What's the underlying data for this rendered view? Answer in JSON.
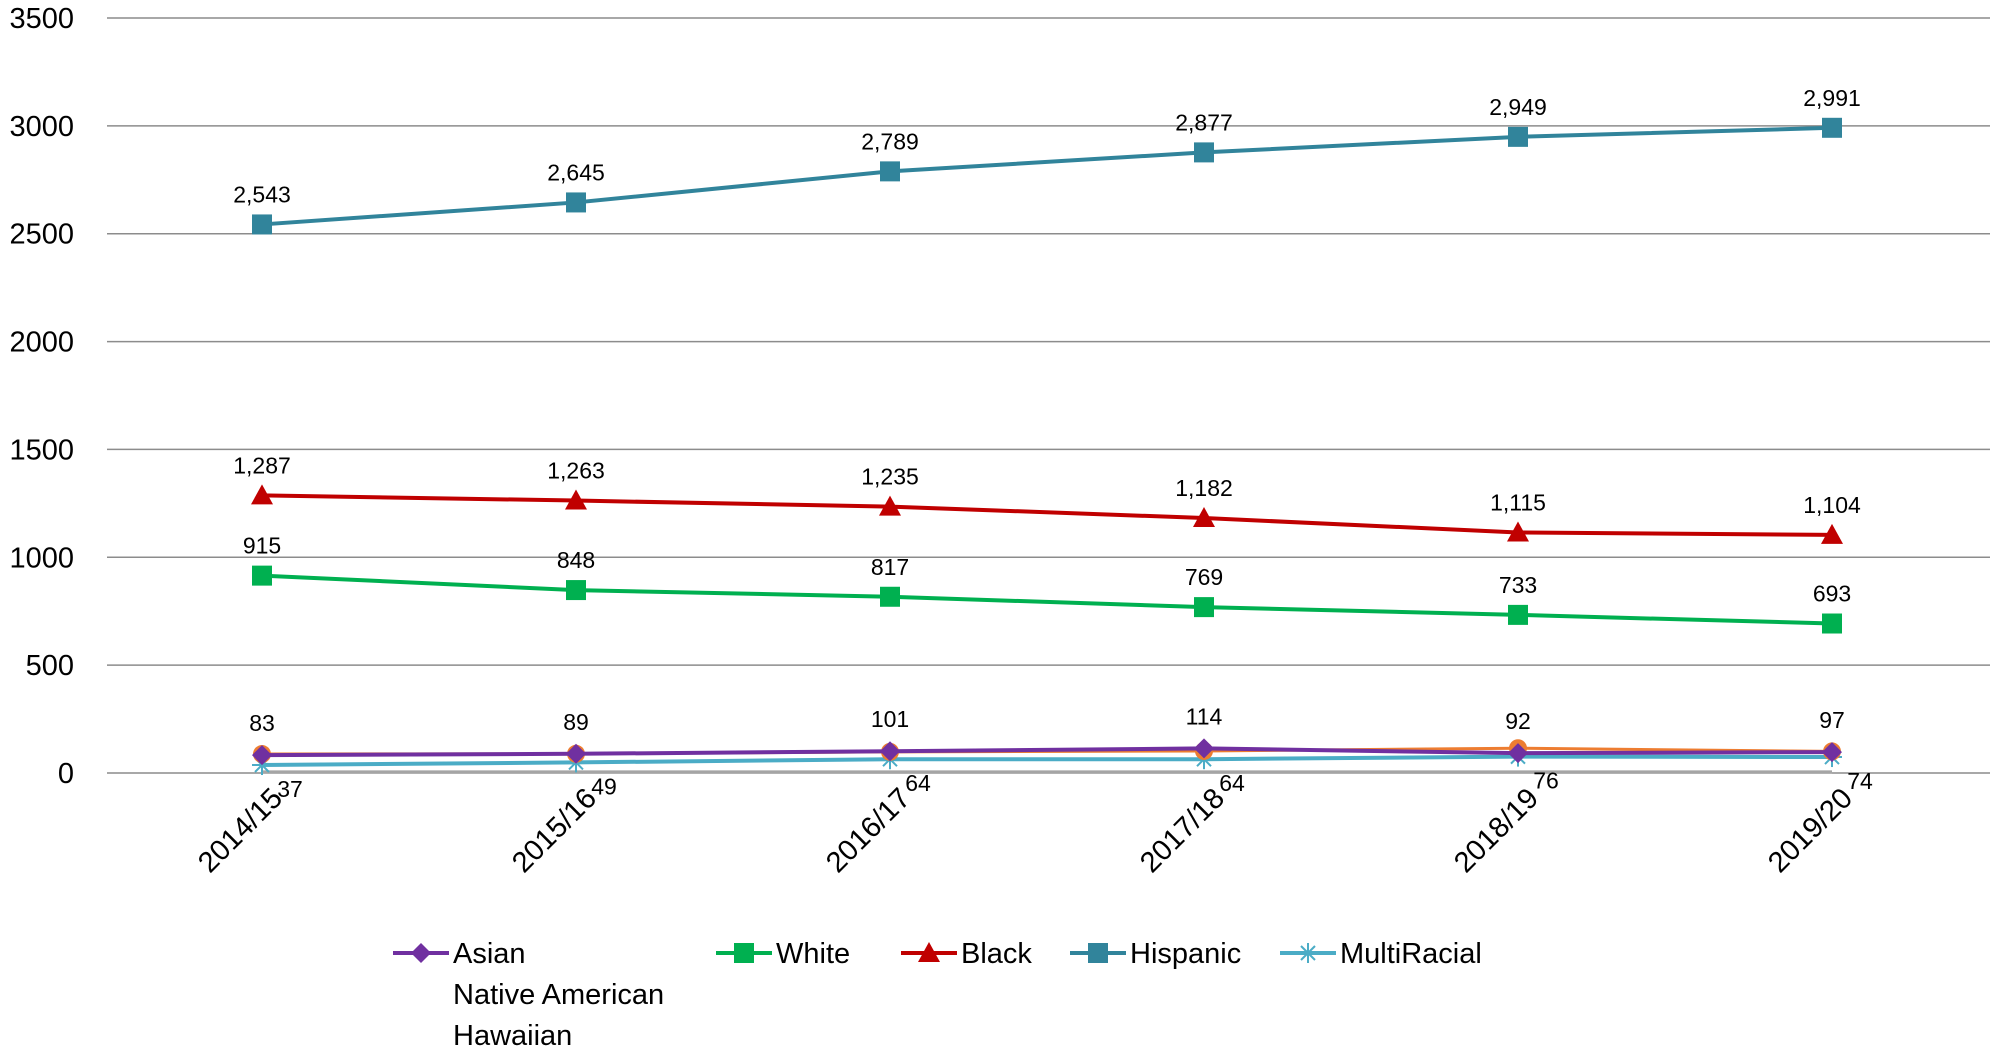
{
  "chart_data": {
    "type": "line",
    "categories": [
      "2014/15",
      "2015/16",
      "2016/17",
      "2017/18",
      "2018/19",
      "2019/20"
    ],
    "y_ticks": [
      "0",
      "500",
      "1000",
      "1500",
      "2000",
      "2500",
      "3000",
      "3500"
    ],
    "ylim": [
      0,
      3500
    ],
    "grid": "horizontal",
    "legend_position": "bottom",
    "series": [
      {
        "name": "Asian",
        "values": [
          83,
          89,
          101,
          114,
          92,
          97
        ],
        "labels": [
          "83",
          "89",
          "101",
          "114",
          "92",
          "97"
        ],
        "color": "#7030a0",
        "marker": "diamond"
      },
      {
        "name": "Native American",
        "values": [
          88,
          89,
          98,
          102,
          115,
          100
        ],
        "color": "#ed7d31",
        "marker": "circle"
      },
      {
        "name": "Hawaiian",
        "values": [
          5,
          5,
          5,
          5,
          5,
          5
        ],
        "color": "#a5a5a5",
        "marker": "none"
      },
      {
        "name": "White",
        "values": [
          915,
          848,
          817,
          769,
          733,
          693
        ],
        "labels": [
          "915",
          "848",
          "817",
          "769",
          "733",
          "693"
        ],
        "color": "#00b050",
        "marker": "square"
      },
      {
        "name": "Black",
        "values": [
          1287,
          1263,
          1235,
          1182,
          1115,
          1104
        ],
        "labels": [
          "1,287",
          "1,263",
          "1,235",
          "1,182",
          "1,115",
          "1,104"
        ],
        "color": "#c00000",
        "marker": "triangle"
      },
      {
        "name": "Hispanic",
        "values": [
          2543,
          2645,
          2789,
          2877,
          2949,
          2991
        ],
        "labels": [
          "2,543",
          "2,645",
          "2,789",
          "2,877",
          "2,949",
          "2,991"
        ],
        "color": "#31849b",
        "marker": "square"
      },
      {
        "name": "MultiRacial",
        "values": [
          37,
          49,
          64,
          64,
          76,
          74
        ],
        "labels": [
          "37",
          "49",
          "64",
          "64",
          "76",
          "74"
        ],
        "color": "#4bacc6",
        "marker": "asterisk"
      }
    ]
  }
}
